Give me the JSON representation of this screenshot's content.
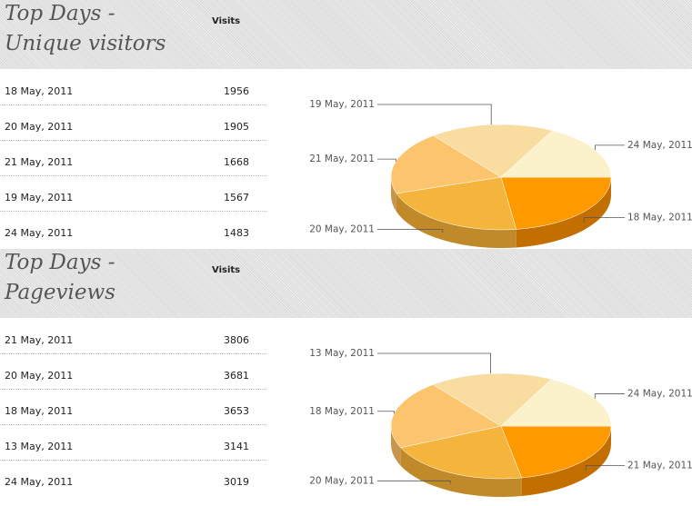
{
  "sections": [
    {
      "title_lines": [
        "Top Days -",
        "Unique visitors"
      ],
      "column_header": "Visits",
      "rows": [
        [
          "18 May, 2011",
          1956
        ],
        [
          "20 May, 2011",
          1905
        ],
        [
          "21 May, 2011",
          1668
        ],
        [
          "19 May, 2011",
          1567
        ],
        [
          "24 May, 2011",
          1483
        ]
      ]
    },
    {
      "title_lines": [
        "Top Days -",
        "Pageviews"
      ],
      "column_header": "Visits",
      "rows": [
        [
          "21 May, 2011",
          3806
        ],
        [
          "20 May, 2011",
          3681
        ],
        [
          "18 May, 2011",
          3653
        ],
        [
          "13 May, 2011",
          3141
        ],
        [
          "24 May, 2011",
          3019
        ]
      ]
    }
  ]
}
